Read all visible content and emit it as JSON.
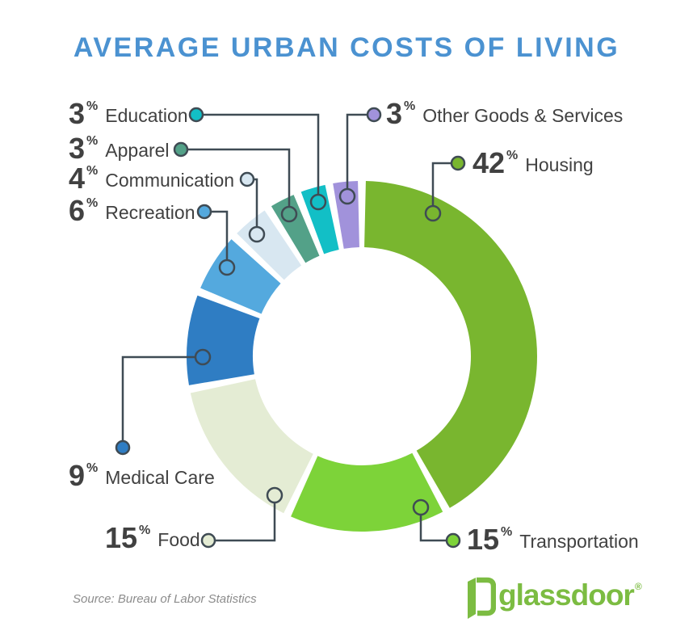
{
  "title": {
    "text": "AVERAGE URBAN COSTS OF LIVING",
    "color": "#4B92D1"
  },
  "chart_data": {
    "type": "pie",
    "subtype": "donut",
    "title": "Average Urban Costs of Living",
    "unit": "%",
    "start_angle_deg": 0,
    "direction": "clockwise",
    "legend_position": "callouts",
    "slices": [
      {
        "label": "Housing",
        "value": 42,
        "color": "#79B62F"
      },
      {
        "label": "Transportation",
        "value": 15,
        "color": "#7DD339"
      },
      {
        "label": "Food",
        "value": 15,
        "color": "#E4ECD4"
      },
      {
        "label": "Medical Care",
        "value": 9,
        "color": "#2F7DC3"
      },
      {
        "label": "Recreation",
        "value": 6,
        "color": "#54A9DE"
      },
      {
        "label": "Communication",
        "value": 4,
        "color": "#D8E7F1"
      },
      {
        "label": "Apparel",
        "value": 3,
        "color": "#53A188"
      },
      {
        "label": "Education",
        "value": 3,
        "color": "#12BFC6"
      },
      {
        "label": "Other Goods & Services",
        "value": 3,
        "color": "#A192DB"
      }
    ]
  },
  "line_color": "#3F4B54",
  "text_color": "#414141",
  "source": {
    "text": "Source: Bureau of Labor Statistics"
  },
  "logo": {
    "text": "glassdoor",
    "registered": "®",
    "color": "#7CBC42"
  }
}
